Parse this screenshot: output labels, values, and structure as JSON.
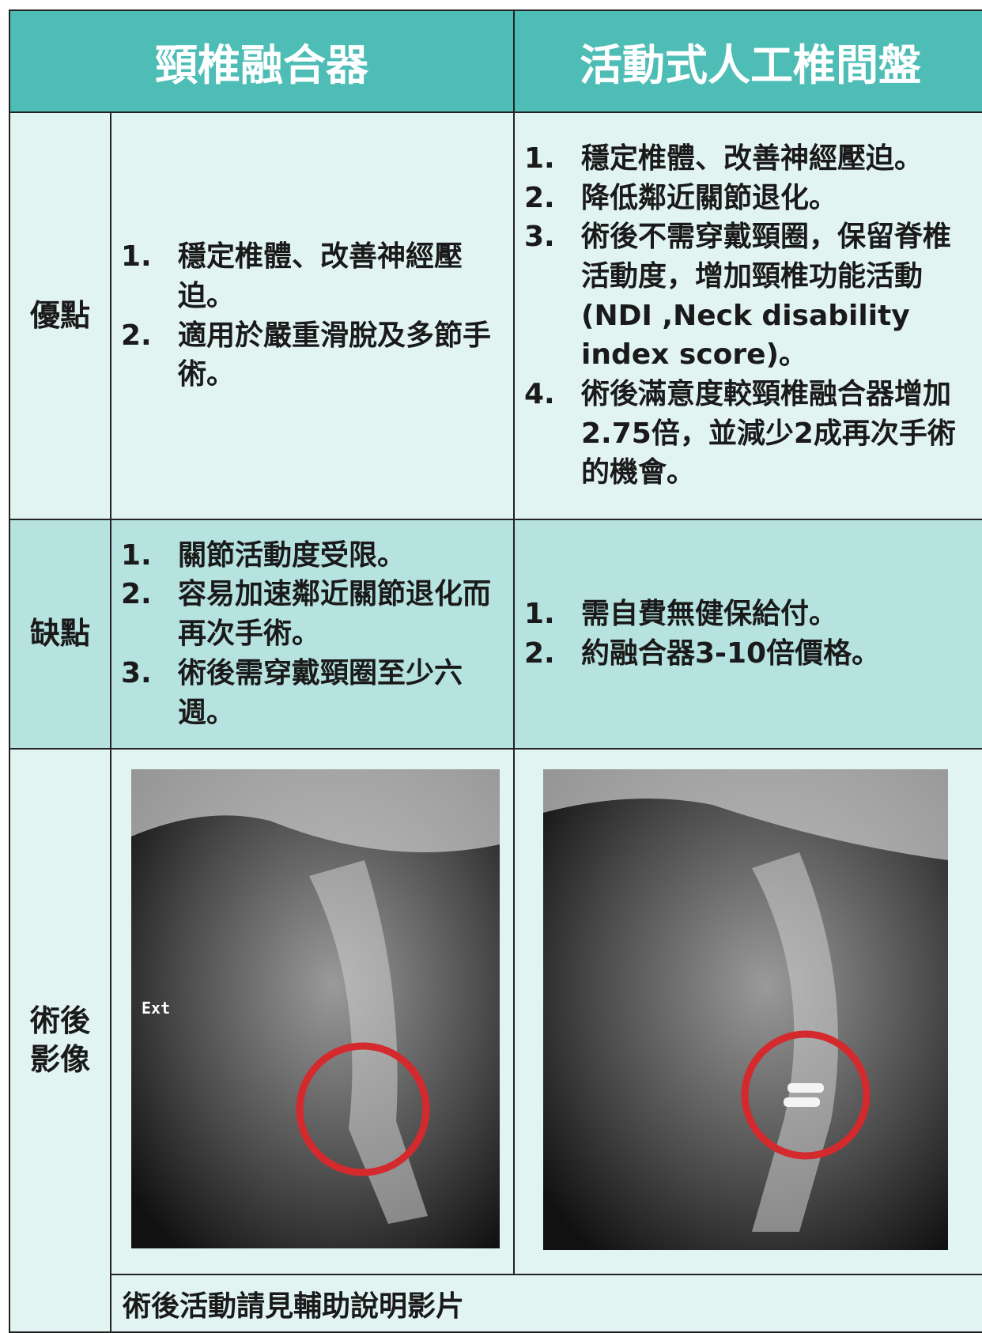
{
  "header": {
    "left": "頸椎融合器",
    "right": "活動式人工椎間盤"
  },
  "rows": [
    {
      "label": "優點",
      "left": [
        {
          "marker": "1.",
          "text": "穩定椎體、改善神經壓迫。"
        },
        {
          "marker": "2.",
          "text": "適用於嚴重滑脫及多節手術。"
        }
      ],
      "right": [
        {
          "marker": "1.",
          "text": "穩定椎體、改善神經壓迫。"
        },
        {
          "marker": "2.",
          "text": "降低鄰近關節退化。"
        },
        {
          "marker": "3.",
          "text": "術後不需穿戴頸圈，保留脊椎活動度，增加頸椎功能活動(NDI ,Neck disability index score)。"
        },
        {
          "marker": "4.",
          "text": "術後滿意度較頸椎融合器增加2.75倍，並減少2成再次手術的機會。"
        }
      ]
    },
    {
      "label": "缺點",
      "left": [
        {
          "marker": "1.",
          "text": "關節活動度受限。"
        },
        {
          "marker": "2.",
          "text": "容易加速鄰近關節退化而再次手術。"
        },
        {
          "marker": "3.",
          "text": "術後需穿戴頸圈至少六週。"
        }
      ],
      "right": [
        {
          "marker": "1.",
          "text": "需自費無健保給付。"
        },
        {
          "marker": "2.",
          "text": "約融合器3-10倍價格。"
        }
      ]
    }
  ],
  "images": {
    "label": "術後影像",
    "left_annotation": "Ext",
    "caption": "術後活動請見輔助說明影片"
  }
}
